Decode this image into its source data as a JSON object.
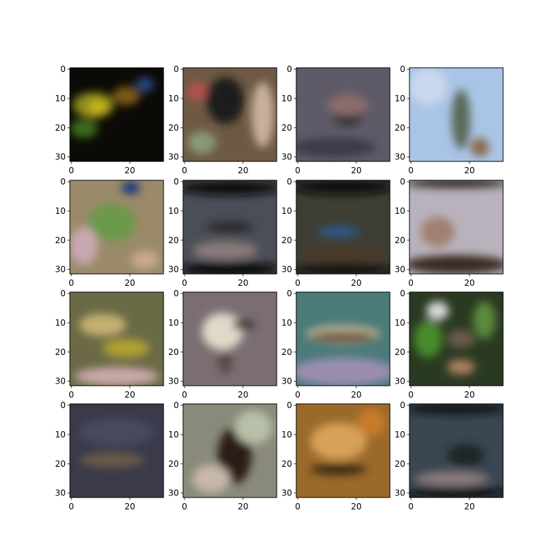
{
  "chart_data": {
    "type": "image-grid",
    "rows": 4,
    "cols": 4,
    "image_size": [
      32,
      32
    ],
    "x_ticks": [
      "0",
      "20"
    ],
    "y_ticks": [
      "0",
      "10",
      "20",
      "30"
    ],
    "tiles": [
      {
        "bg": "#0c0a06",
        "blobs": [
          {
            "c": "#8a8a1a",
            "x": 0.25,
            "y": 0.4,
            "rx": 0.22,
            "ry": 0.14
          },
          {
            "c": "#c7b31c",
            "x": 0.3,
            "y": 0.42,
            "rx": 0.1,
            "ry": 0.08
          },
          {
            "c": "#3a6a1a",
            "x": 0.15,
            "y": 0.65,
            "rx": 0.15,
            "ry": 0.1
          },
          {
            "c": "#27457a",
            "x": 0.8,
            "y": 0.18,
            "rx": 0.1,
            "ry": 0.08
          },
          {
            "c": "#7a5a14",
            "x": 0.6,
            "y": 0.3,
            "rx": 0.15,
            "ry": 0.1
          }
        ]
      },
      {
        "bg": "#6e5a44",
        "blobs": [
          {
            "c": "#1c1a1a",
            "x": 0.45,
            "y": 0.35,
            "rx": 0.2,
            "ry": 0.25
          },
          {
            "c": "#c8b09a",
            "x": 0.85,
            "y": 0.5,
            "rx": 0.12,
            "ry": 0.35
          },
          {
            "c": "#b55050",
            "x": 0.15,
            "y": 0.25,
            "rx": 0.1,
            "ry": 0.1
          },
          {
            "c": "#8a9a7a",
            "x": 0.2,
            "y": 0.8,
            "rx": 0.15,
            "ry": 0.12
          }
        ]
      },
      {
        "bg": "#5e5a68",
        "blobs": [
          {
            "c": "#0e1a10",
            "x": 0.55,
            "y": 0.48,
            "rx": 0.16,
            "ry": 0.12
          },
          {
            "c": "#8a6c6a",
            "x": 0.55,
            "y": 0.4,
            "rx": 0.22,
            "ry": 0.12
          },
          {
            "c": "#3a3a4a",
            "x": 0.4,
            "y": 0.85,
            "rx": 0.45,
            "ry": 0.1
          }
        ]
      },
      {
        "bg": "#a9c4e6",
        "blobs": [
          {
            "c": "#5a6a5a",
            "x": 0.55,
            "y": 0.55,
            "rx": 0.1,
            "ry": 0.32
          },
          {
            "c": "#8a6a4a",
            "x": 0.75,
            "y": 0.85,
            "rx": 0.1,
            "ry": 0.1
          },
          {
            "c": "#c9d8ee",
            "x": 0.2,
            "y": 0.2,
            "rx": 0.2,
            "ry": 0.2
          }
        ]
      },
      {
        "bg": "#9a8a6a",
        "blobs": [
          {
            "c": "#6a9a4a",
            "x": 0.45,
            "y": 0.45,
            "rx": 0.25,
            "ry": 0.2
          },
          {
            "c": "#c8a8b0",
            "x": 0.15,
            "y": 0.7,
            "rx": 0.15,
            "ry": 0.2
          },
          {
            "c": "#1e3a7a",
            "x": 0.65,
            "y": 0.08,
            "rx": 0.1,
            "ry": 0.07
          },
          {
            "c": "#c9a890",
            "x": 0.8,
            "y": 0.85,
            "rx": 0.15,
            "ry": 0.1
          }
        ]
      },
      {
        "bg": "#4a4e56",
        "blobs": [
          {
            "c": "#101010",
            "x": 0.5,
            "y": 0.08,
            "rx": 0.55,
            "ry": 0.08
          },
          {
            "c": "#2a2a2e",
            "x": 0.5,
            "y": 0.5,
            "rx": 0.25,
            "ry": 0.06
          },
          {
            "c": "#8a7a7a",
            "x": 0.45,
            "y": 0.75,
            "rx": 0.35,
            "ry": 0.1
          },
          {
            "c": "#0e0e0e",
            "x": 0.5,
            "y": 0.95,
            "rx": 0.55,
            "ry": 0.08
          }
        ]
      },
      {
        "bg": "#3e3e34",
        "blobs": [
          {
            "c": "#0e0e0e",
            "x": 0.5,
            "y": 0.07,
            "rx": 0.55,
            "ry": 0.08
          },
          {
            "c": "#2a5a8a",
            "x": 0.45,
            "y": 0.55,
            "rx": 0.22,
            "ry": 0.06
          },
          {
            "c": "#4a3a2a",
            "x": 0.5,
            "y": 0.8,
            "rx": 0.45,
            "ry": 0.1
          },
          {
            "c": "#0a0a0a",
            "x": 0.5,
            "y": 0.95,
            "rx": 0.55,
            "ry": 0.06
          }
        ]
      },
      {
        "bg": "#b9b2bc",
        "blobs": [
          {
            "c": "#a08070",
            "x": 0.3,
            "y": 0.55,
            "rx": 0.18,
            "ry": 0.16
          },
          {
            "c": "#3a2a22",
            "x": 0.5,
            "y": 0.9,
            "rx": 0.55,
            "ry": 0.1
          },
          {
            "c": "#2a2020",
            "x": 0.5,
            "y": 0.03,
            "rx": 0.55,
            "ry": 0.05
          }
        ]
      },
      {
        "bg": "#6a6a46",
        "blobs": [
          {
            "c": "#c4b070",
            "x": 0.35,
            "y": 0.35,
            "rx": 0.25,
            "ry": 0.12
          },
          {
            "c": "#b0a030",
            "x": 0.6,
            "y": 0.6,
            "rx": 0.25,
            "ry": 0.1
          },
          {
            "c": "#c8a8a8",
            "x": 0.5,
            "y": 0.9,
            "rx": 0.45,
            "ry": 0.1
          }
        ]
      },
      {
        "bg": "#7a6e72",
        "blobs": [
          {
            "c": "#e0d8c8",
            "x": 0.42,
            "y": 0.42,
            "rx": 0.22,
            "ry": 0.2
          },
          {
            "c": "#4a3e3e",
            "x": 0.65,
            "y": 0.35,
            "rx": 0.12,
            "ry": 0.06
          },
          {
            "c": "#5a4a4a",
            "x": 0.45,
            "y": 0.75,
            "rx": 0.08,
            "ry": 0.12
          }
        ]
      },
      {
        "bg": "#4a7a7a",
        "blobs": [
          {
            "c": "#b8b090",
            "x": 0.5,
            "y": 0.45,
            "rx": 0.4,
            "ry": 0.1
          },
          {
            "c": "#6a4a2a",
            "x": 0.5,
            "y": 0.48,
            "rx": 0.35,
            "ry": 0.05
          },
          {
            "c": "#9a8eb0",
            "x": 0.5,
            "y": 0.85,
            "rx": 0.55,
            "ry": 0.15
          }
        ]
      },
      {
        "bg": "#2a3a22",
        "blobs": [
          {
            "c": "#4a8a2a",
            "x": 0.2,
            "y": 0.5,
            "rx": 0.15,
            "ry": 0.2
          },
          {
            "c": "#d8d8d8",
            "x": 0.3,
            "y": 0.2,
            "rx": 0.12,
            "ry": 0.1
          },
          {
            "c": "#6a5a4a",
            "x": 0.55,
            "y": 0.5,
            "rx": 0.15,
            "ry": 0.1
          },
          {
            "c": "#b08060",
            "x": 0.55,
            "y": 0.8,
            "rx": 0.15,
            "ry": 0.08
          },
          {
            "c": "#5a8a3a",
            "x": 0.8,
            "y": 0.3,
            "rx": 0.12,
            "ry": 0.2
          }
        ]
      },
      {
        "bg": "#3a3a4a",
        "blobs": [
          {
            "c": "#6a5a4a",
            "x": 0.45,
            "y": 0.6,
            "rx": 0.35,
            "ry": 0.08
          },
          {
            "c": "#4a4a5e",
            "x": 0.5,
            "y": 0.3,
            "rx": 0.4,
            "ry": 0.15
          }
        ]
      },
      {
        "bg": "#8a8a7a",
        "blobs": [
          {
            "c": "#2a1a14",
            "x": 0.55,
            "y": 0.55,
            "rx": 0.18,
            "ry": 0.3
          },
          {
            "c": "#c8b8a8",
            "x": 0.3,
            "y": 0.8,
            "rx": 0.2,
            "ry": 0.15
          },
          {
            "c": "#b8c0a8",
            "x": 0.75,
            "y": 0.25,
            "rx": 0.2,
            "ry": 0.18
          }
        ]
      },
      {
        "bg": "#9a6a2a",
        "blobs": [
          {
            "c": "#d8a05a",
            "x": 0.45,
            "y": 0.4,
            "rx": 0.3,
            "ry": 0.2
          },
          {
            "c": "#3a2a14",
            "x": 0.45,
            "y": 0.7,
            "rx": 0.3,
            "ry": 0.06
          },
          {
            "c": "#c87a2a",
            "x": 0.8,
            "y": 0.2,
            "rx": 0.15,
            "ry": 0.15
          }
        ]
      },
      {
        "bg": "#3a4652",
        "blobs": [
          {
            "c": "#1a2628",
            "x": 0.6,
            "y": 0.55,
            "rx": 0.2,
            "ry": 0.12
          },
          {
            "c": "#8a7a7a",
            "x": 0.45,
            "y": 0.8,
            "rx": 0.4,
            "ry": 0.08
          },
          {
            "c": "#0a0a0a",
            "x": 0.5,
            "y": 0.95,
            "rx": 0.55,
            "ry": 0.06
          },
          {
            "c": "#0e1414",
            "x": 0.5,
            "y": 0.05,
            "rx": 0.55,
            "ry": 0.06
          }
        ]
      }
    ]
  }
}
